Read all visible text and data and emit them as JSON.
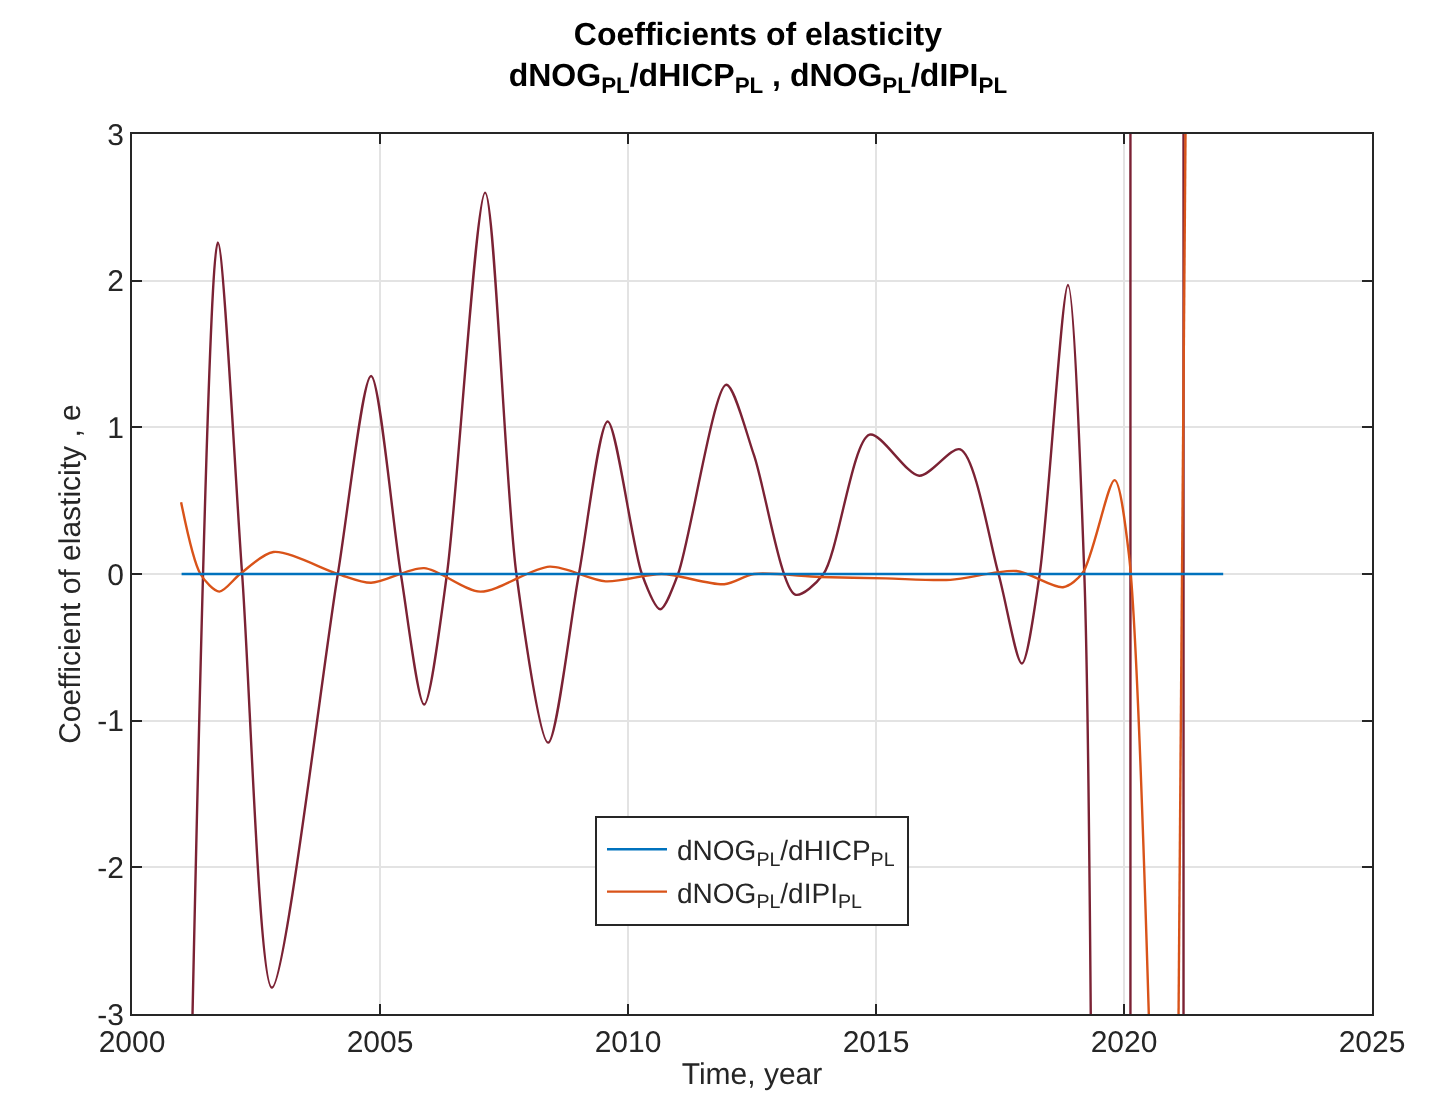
{
  "chart_data": {
    "type": "line",
    "title": "Coefficients of elasticity",
    "subtitle": "dNOG$_{PL}$/dHICP$_{PL}$ , dNOG$_{PL}$/dIPI$_{PL}$",
    "xlabel": "Time, year",
    "ylabel": "Coefficient of elasticity , e",
    "xlim": [
      2000,
      2025
    ],
    "ylim": [
      -3,
      3
    ],
    "xticks": [
      2000,
      2005,
      2010,
      2015,
      2020,
      2025
    ],
    "yticks": [
      -3,
      -2,
      -1,
      0,
      1,
      2,
      3
    ],
    "grid": true,
    "legend": "bottom",
    "marker": "none",
    "line_style": "solid",
    "series": [
      {
        "color": "#7b2234",
        "x": [
          2001.22,
          2001.73,
          2002.22,
          2002.82,
          2004.15,
          2004.82,
          2005.42,
          2005.89,
          2006.35,
          2007.12,
          2007.75,
          2008.39,
          2009.01,
          2009.59,
          2010.28,
          2010.65,
          2011.01,
          2011.98,
          2012.54,
          2013.37,
          2013.94,
          2014.87,
          2015.87,
          2016.7,
          2017.47,
          2017.94,
          2018.3,
          2018.87,
          2019.2,
          2019.33,
          2019.8,
          2020.13,
          2020.13,
          2020.7,
          2021.2,
          2021.2
        ],
        "values": [
          -3,
          2.26,
          0,
          -2.82,
          0,
          1.35,
          0,
          -0.89,
          0,
          2.6,
          0,
          -1.15,
          0,
          1.04,
          0,
          -0.24,
          0,
          1.29,
          0.81,
          -0.14,
          0,
          0.95,
          0.67,
          0.85,
          0,
          -0.61,
          0,
          1.97,
          0,
          -3,
          null,
          -3,
          3,
          null,
          -3,
          3
        ]
      },
      {
        "name": "dNOG$_{PL}$/dIPI$_{PL}$",
        "color": "#d95319",
        "x": [
          2000.99,
          2001.38,
          2001.76,
          2002.18,
          2002.85,
          2004.15,
          2004.82,
          2005.89,
          2007.02,
          2008.42,
          2009.55,
          2010.68,
          2011.94,
          2012.54,
          2013.87,
          2015.2,
          2016.5,
          2017.83,
          2018.77,
          2019.17,
          2019.81,
          2020.1,
          2020.5,
          2020.8,
          2021.1,
          2021.24
        ],
        "values": [
          0.49,
          0,
          -0.12,
          0,
          0.15,
          0,
          -0.06,
          0.04,
          -0.12,
          0.05,
          -0.05,
          0,
          -0.07,
          0,
          -0.02,
          -0.03,
          -0.04,
          0.02,
          -0.09,
          0.01,
          0.64,
          0.13,
          -3,
          null,
          -3,
          3
        ]
      },
      {
        "name": "dNOG$_{PL}$/dHICP$_{PL}$",
        "color": "#0072bd",
        "x": [
          2001,
          2022
        ],
        "values": [
          0,
          0
        ]
      }
    ]
  }
}
